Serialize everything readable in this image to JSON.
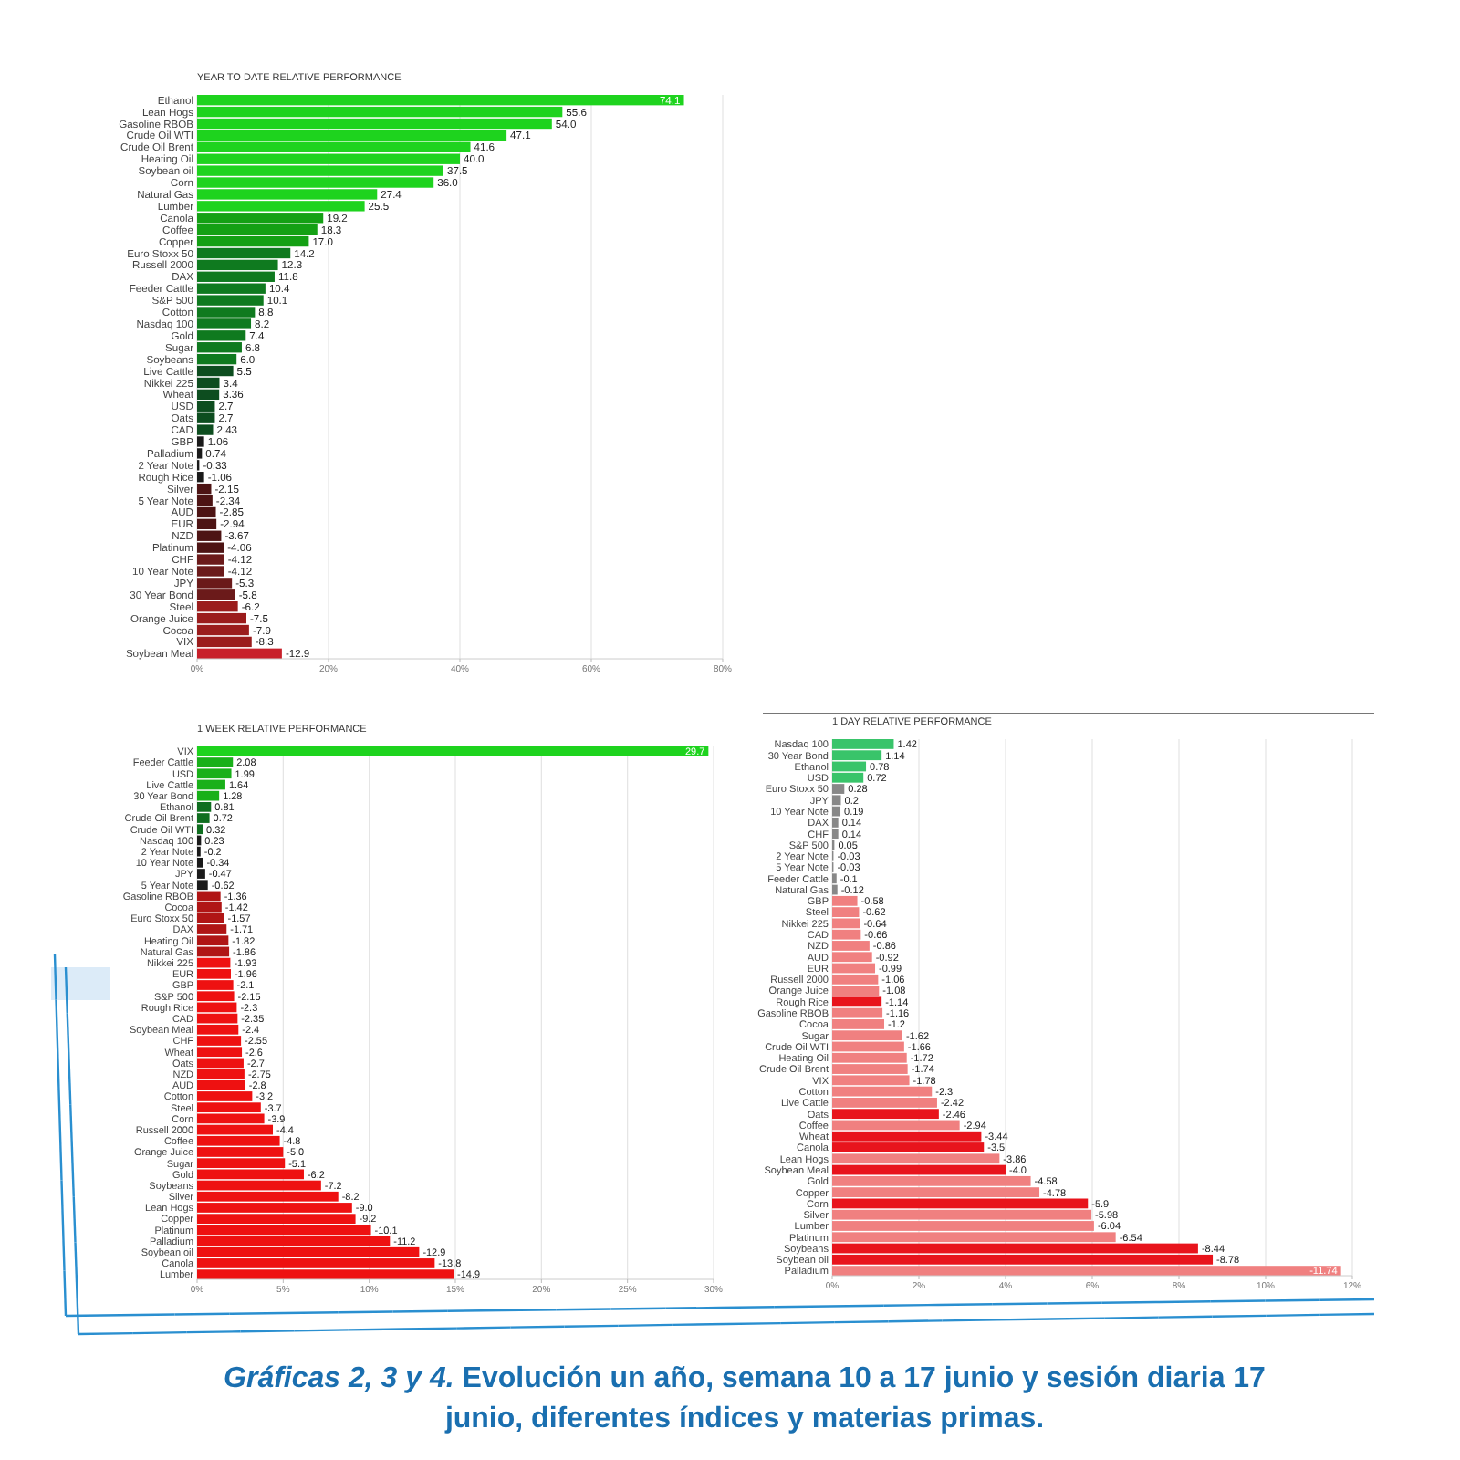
{
  "chart_data": [
    {
      "type": "bar",
      "orientation": "horizontal",
      "title": "YEAR TO DATE RELATIVE PERFORMANCE",
      "grid": "x",
      "categories": [
        "Ethanol",
        "Lean Hogs",
        "Gasoline RBOB",
        "Crude Oil WTI",
        "Crude Oil Brent",
        "Heating Oil",
        "Soybean oil",
        "Corn",
        "Natural Gas",
        "Lumber",
        "Canola",
        "Coffee",
        "Copper",
        "Euro Stoxx 50",
        "Russell 2000",
        "DAX",
        "Feeder Cattle",
        "S&P 500",
        "Cotton",
        "Nasdaq 100",
        "Gold",
        "Sugar",
        "Soybeans",
        "Live Cattle",
        "Nikkei 225",
        "Wheat",
        "USD",
        "Oats",
        "CAD",
        "GBP",
        "Palladium",
        "2 Year Note",
        "Rough Rice",
        "Silver",
        "5 Year Note",
        "AUD",
        "EUR",
        "NZD",
        "Platinum",
        "CHF",
        "10 Year Note",
        "JPY",
        "30 Year Bond",
        "Steel",
        "Orange Juice",
        "Cocoa",
        "VIX",
        "Soybean Meal"
      ],
      "values": [
        74.1,
        55.6,
        54.0,
        47.1,
        41.6,
        40.0,
        37.5,
        36.0,
        27.4,
        25.5,
        19.2,
        18.3,
        17.0,
        14.2,
        12.3,
        11.8,
        10.4,
        10.1,
        8.8,
        8.2,
        7.4,
        6.8,
        6.0,
        5.5,
        3.4,
        3.36,
        2.7,
        2.7,
        2.43,
        1.06,
        0.74,
        -0.33,
        -1.06,
        -2.15,
        -2.34,
        -2.85,
        -2.94,
        -3.67,
        -4.06,
        -4.12,
        -4.12,
        -5.3,
        -5.8,
        -6.2,
        -7.5,
        -7.9,
        -8.3,
        -12.9
      ],
      "base": [
        0,
        0,
        0,
        0,
        0,
        0,
        0,
        0,
        0,
        0,
        0,
        0,
        0,
        0,
        0,
        0,
        0,
        0,
        0,
        0,
        0,
        0,
        0,
        0,
        0,
        0,
        0,
        0,
        0,
        0,
        0,
        0.33,
        1.06,
        2.15,
        2.34,
        2.85,
        2.94,
        3.67,
        4.06,
        4.12,
        4.12,
        5.3,
        5.8,
        6.2,
        7.5,
        7.9,
        8.3,
        12.9
      ],
      "value_labels": [
        "74.1",
        "55.6",
        "54.0",
        "47.1",
        "41.6",
        "40.0",
        "37.5",
        "36.0",
        "27.4",
        "25.5",
        "19.2",
        "18.3",
        "17.0",
        "14.2",
        "12.3",
        "11.8",
        "10.4",
        "10.1",
        "8.8",
        "8.2",
        "7.4",
        "6.8",
        "6.0",
        "5.5",
        "3.4",
        "3.36",
        "2.7",
        "2.7",
        "2.43",
        "1.06",
        "0.74",
        "-0.33",
        "-1.06",
        "-2.15",
        "-2.34",
        "-2.85",
        "-2.94",
        "-3.67",
        "-4.06",
        "-4.12",
        "-4.12",
        "-5.3",
        "-5.8",
        "-6.2",
        "-7.5",
        "-7.9",
        "-8.3",
        "-12.9"
      ],
      "colors": [
        "#1ed31e",
        "#1ed31e",
        "#1ed31e",
        "#1ed31e",
        "#1ed31e",
        "#1ed31e",
        "#1ed31e",
        "#1ed31e",
        "#1ed31e",
        "#1ed31e",
        "#14a014",
        "#14a014",
        "#14a014",
        "#0f7a1f",
        "#0f7a1f",
        "#0f7a1f",
        "#0f7a1f",
        "#0f7a1f",
        "#0f7a1f",
        "#0f7a1f",
        "#0f7a1f",
        "#0f7a1f",
        "#0f7a1f",
        "#0d4d1f",
        "#0d4d1f",
        "#0d4d1f",
        "#0d4d1f",
        "#0d4d1f",
        "#0d4d1f",
        "#1a1a1a",
        "#1a1a1a",
        "#1a1a1a",
        "#1a1a1a",
        "#4d1414",
        "#4d1414",
        "#4d1414",
        "#4d1414",
        "#4d1414",
        "#4d1414",
        "#6b1a1a",
        "#6b1a1a",
        "#6b1a1a",
        "#6b1a1a",
        "#9b1c1c",
        "#9b1c1c",
        "#9b1c1c",
        "#9b1c1c",
        "#c8202a"
      ],
      "xlim": [
        0,
        80
      ],
      "xticks": [
        {
          "value": 0,
          "label": "0%"
        },
        {
          "value": 20,
          "label": "20%"
        },
        {
          "value": 40,
          "label": "40%"
        },
        {
          "value": 60,
          "label": "60%"
        },
        {
          "value": 80,
          "label": "80%"
        }
      ]
    },
    {
      "type": "bar",
      "orientation": "horizontal",
      "title": "1 WEEK RELATIVE PERFORMANCE",
      "grid": "x",
      "categories": [
        "VIX",
        "Feeder Cattle",
        "USD",
        "Live Cattle",
        "30 Year Bond",
        "Ethanol",
        "Crude Oil Brent",
        "Crude Oil WTI",
        "Nasdaq 100",
        "2 Year Note",
        "10 Year Note",
        "JPY",
        "5 Year Note",
        "Gasoline RBOB",
        "Cocoa",
        "Euro Stoxx 50",
        "DAX",
        "Heating Oil",
        "Natural Gas",
        "Nikkei 225",
        "EUR",
        "GBP",
        "S&P 500",
        "Rough Rice",
        "CAD",
        "Soybean Meal",
        "CHF",
        "Wheat",
        "Oats",
        "NZD",
        "AUD",
        "Cotton",
        "Steel",
        "Corn",
        "Russell 2000",
        "Coffee",
        "Orange Juice",
        "Sugar",
        "Gold",
        "Soybeans",
        "Silver",
        "Lean Hogs",
        "Copper",
        "Platinum",
        "Palladium",
        "Soybean oil",
        "Canola",
        "Lumber"
      ],
      "values": [
        29.7,
        2.08,
        1.99,
        1.64,
        1.28,
        0.81,
        0.72,
        0.32,
        0.23,
        -0.2,
        -0.34,
        -0.47,
        -0.62,
        -1.36,
        -1.42,
        -1.57,
        -1.71,
        -1.82,
        -1.86,
        -1.93,
        -1.96,
        -2.1,
        -2.15,
        -2.3,
        -2.35,
        -2.4,
        -2.55,
        -2.6,
        -2.7,
        -2.75,
        -2.8,
        -3.2,
        -3.7,
        -3.9,
        -4.4,
        -4.8,
        -5.0,
        -5.1,
        -6.2,
        -7.2,
        -8.2,
        -9.0,
        -9.2,
        -10.1,
        -11.2,
        -12.9,
        -13.8,
        -14.9
      ],
      "base": [
        0,
        0,
        0,
        0,
        0,
        0,
        0,
        0,
        0,
        0.2,
        0.34,
        0.47,
        0.62,
        1.36,
        1.42,
        1.57,
        1.71,
        1.82,
        1.86,
        1.93,
        1.96,
        2.1,
        2.15,
        2.3,
        2.35,
        2.4,
        2.55,
        2.6,
        2.7,
        2.75,
        2.8,
        3.2,
        3.7,
        3.9,
        4.4,
        4.8,
        5.0,
        5.1,
        6.2,
        7.2,
        8.2,
        9.0,
        9.2,
        10.1,
        11.2,
        12.9,
        13.8,
        14.9
      ],
      "value_labels": [
        "29.7",
        "2.08",
        "1.99",
        "1.64",
        "1.28",
        "0.81",
        "0.72",
        "0.32",
        "0.23",
        "-0.2",
        "-0.34",
        "-0.47",
        "-0.62",
        "-1.36",
        "-1.42",
        "-1.57",
        "-1.71",
        "-1.82",
        "-1.86",
        "-1.93",
        "-1.96",
        "-2.1",
        "-2.15",
        "-2.3",
        "-2.35",
        "-2.4",
        "-2.55",
        "-2.6",
        "-2.7",
        "-2.75",
        "-2.8",
        "-3.2",
        "-3.7",
        "-3.9",
        "-4.4",
        "-4.8",
        "-5.0",
        "-5.1",
        "-6.2",
        "-7.2",
        "-8.2",
        "-9.0",
        "-9.2",
        "-10.1",
        "-11.2",
        "-12.9",
        "-13.8",
        "-14.9"
      ],
      "colors": [
        "#1ed31e",
        "#19b019",
        "#19b019",
        "#19b019",
        "#19b019",
        "#0f6e1f",
        "#0f6e1f",
        "#0f6e1f",
        "#1a1a1a",
        "#1a1a1a",
        "#1a1a1a",
        "#1a1a1a",
        "#1a1a1a",
        "#b01515",
        "#b01515",
        "#b01515",
        "#b01515",
        "#b01515",
        "#b01515",
        "#ee1111",
        "#ee1111",
        "#ee1111",
        "#ee1111",
        "#ee1111",
        "#ee1111",
        "#ee1111",
        "#ee1111",
        "#ee1111",
        "#ee1111",
        "#ee1111",
        "#ee1111",
        "#ee1111",
        "#ee1111",
        "#ee1111",
        "#ee1111",
        "#ee1111",
        "#ee1111",
        "#ee1111",
        "#ee1111",
        "#ee1111",
        "#ee1111",
        "#ee1111",
        "#ee1111",
        "#ee1111",
        "#ee1111",
        "#ee1111",
        "#ee1111",
        "#ee1111"
      ],
      "xlim": [
        0,
        30
      ],
      "xticks": [
        {
          "value": 0,
          "label": "0%"
        },
        {
          "value": 5,
          "label": "5%"
        },
        {
          "value": 10,
          "label": "10%"
        },
        {
          "value": 15,
          "label": "15%"
        },
        {
          "value": 20,
          "label": "20%"
        },
        {
          "value": 25,
          "label": "25%"
        },
        {
          "value": 30,
          "label": "30%"
        }
      ]
    },
    {
      "type": "bar",
      "orientation": "horizontal",
      "title": "1 DAY RELATIVE PERFORMANCE",
      "grid": "x",
      "categories": [
        "Nasdaq 100",
        "30 Year Bond",
        "Ethanol",
        "USD",
        "Euro Stoxx 50",
        "JPY",
        "10 Year Note",
        "DAX",
        "CHF",
        "S&P 500",
        "2 Year Note",
        "5 Year Note",
        "Feeder Cattle",
        "Natural Gas",
        "GBP",
        "Steel",
        "Nikkei 225",
        "CAD",
        "NZD",
        "AUD",
        "EUR",
        "Russell 2000",
        "Orange Juice",
        "Rough Rice",
        "Gasoline RBOB",
        "Cocoa",
        "Sugar",
        "Crude Oil WTI",
        "Heating Oil",
        "Crude Oil Brent",
        "VIX",
        "Cotton",
        "Live Cattle",
        "Oats",
        "Coffee",
        "Wheat",
        "Canola",
        "Lean Hogs",
        "Soybean Meal",
        "Gold",
        "Copper",
        "Corn",
        "Silver",
        "Lumber",
        "Platinum",
        "Soybeans",
        "Soybean oil",
        "Palladium"
      ],
      "values": [
        1.42,
        1.14,
        0.78,
        0.72,
        0.28,
        0.2,
        0.19,
        0.14,
        0.14,
        0.05,
        -0.03,
        -0.03,
        -0.1,
        -0.12,
        -0.58,
        -0.62,
        -0.64,
        -0.66,
        -0.86,
        -0.92,
        -0.99,
        -1.06,
        -1.08,
        -1.14,
        -1.16,
        -1.2,
        -1.62,
        -1.66,
        -1.72,
        -1.74,
        -1.78,
        -2.3,
        -2.42,
        -2.46,
        -2.94,
        -3.44,
        -3.5,
        -3.86,
        -4.0,
        -4.58,
        -4.78,
        -5.9,
        -5.98,
        -6.04,
        -6.54,
        -8.44,
        -8.78,
        -11.74
      ],
      "base": [
        0,
        0,
        0,
        0,
        0,
        0,
        0,
        0,
        0,
        0,
        0.03,
        0.03,
        0.1,
        0.12,
        0.58,
        0.62,
        0.64,
        0.66,
        0.86,
        0.92,
        0.99,
        1.06,
        1.08,
        1.14,
        1.16,
        1.2,
        1.62,
        1.66,
        1.72,
        1.74,
        1.78,
        2.3,
        2.42,
        2.46,
        2.94,
        3.44,
        3.5,
        3.86,
        4.0,
        4.58,
        4.78,
        5.9,
        5.98,
        6.04,
        6.54,
        8.44,
        8.78,
        11.74
      ],
      "value_labels": [
        "1.42",
        "1.14",
        "0.78",
        "0.72",
        "0.28",
        "0.2",
        "0.19",
        "0.14",
        "0.14",
        "0.05",
        "-0.03",
        "-0.03",
        "-0.1",
        "-0.12",
        "-0.58",
        "-0.62",
        "-0.64",
        "-0.66",
        "-0.86",
        "-0.92",
        "-0.99",
        "-1.06",
        "-1.08",
        "-1.14",
        "-1.16",
        "-1.2",
        "-1.62",
        "-1.66",
        "-1.72",
        "-1.74",
        "-1.78",
        "-2.3",
        "-2.42",
        "-2.46",
        "-2.94",
        "-3.44",
        "-3.5",
        "-3.86",
        "-4.0",
        "-4.58",
        "-4.78",
        "-5.9",
        "-5.98",
        "-6.04",
        "-6.54",
        "-8.44",
        "-8.78",
        "-11.74"
      ],
      "colors": [
        "#39c46a",
        "#39c46a",
        "#39c46a",
        "#39c46a",
        "#888888",
        "#888888",
        "#888888",
        "#888888",
        "#888888",
        "#888888",
        "#888888",
        "#888888",
        "#888888",
        "#888888",
        "#f08080",
        "#f08080",
        "#f08080",
        "#f08080",
        "#f08080",
        "#f08080",
        "#f08080",
        "#f08080",
        "#f08080",
        "#e8141c",
        "#f08080",
        "#f08080",
        "#f08080",
        "#f08080",
        "#f08080",
        "#f08080",
        "#f08080",
        "#f08080",
        "#f08080",
        "#e8141c",
        "#f08080",
        "#e8141c",
        "#e8141c",
        "#f08080",
        "#e8141c",
        "#f08080",
        "#f08080",
        "#e8141c",
        "#f08080",
        "#f08080",
        "#f08080",
        "#e8141c",
        "#e8141c",
        "#f08080"
      ],
      "xlim": [
        0,
        12
      ],
      "xticks": [
        {
          "value": 0,
          "label": "0%"
        },
        {
          "value": 2,
          "label": "2%"
        },
        {
          "value": 4,
          "label": "4%"
        },
        {
          "value": 6,
          "label": "6%"
        },
        {
          "value": 8,
          "label": "8%"
        },
        {
          "value": 10,
          "label": "10%"
        },
        {
          "value": 12,
          "label": "12%"
        }
      ],
      "annotations": [
        "Gráficas 2, 3 y 4.",
        "Evolución un año, semana 10 a 17 junio y sesión diaria 17 junio, diferentes índices y materias primas."
      ]
    }
  ]
}
